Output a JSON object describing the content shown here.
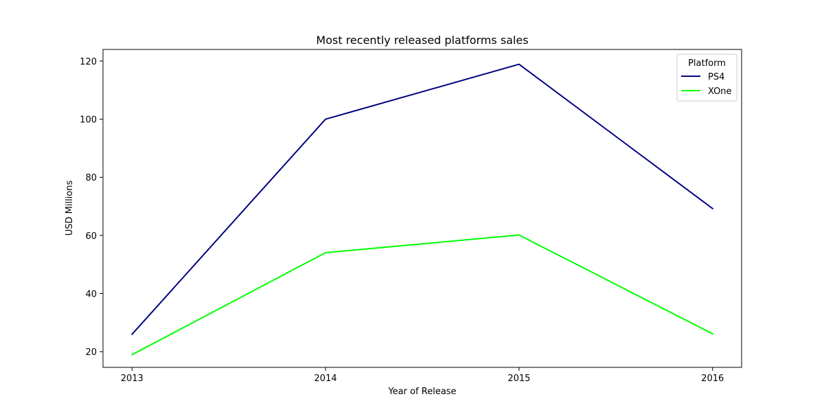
{
  "chart_data": {
    "type": "line",
    "title": "Most recently released platforms sales",
    "xlabel": "Year of Release",
    "ylabel": "USD Millions",
    "x": [
      2013,
      2014,
      2015,
      2016
    ],
    "x_tick_labels": [
      "2013",
      "2014",
      "2015",
      "2016"
    ],
    "xlim": [
      2012.85,
      2016.15
    ],
    "y_ticks": [
      20,
      40,
      60,
      80,
      100,
      120
    ],
    "y_tick_labels": [
      "20",
      "40",
      "60",
      "80",
      "100",
      "120"
    ],
    "ylim": [
      14.6,
      124.0
    ],
    "grid": false,
    "legend": {
      "title": "Platform",
      "placement": "top-right"
    },
    "series": [
      {
        "name": "PS4",
        "color": "#00007f",
        "values": [
          25.99,
          100.0,
          118.9,
          69.25
        ]
      },
      {
        "name": "XOne",
        "color": "#00ff00",
        "values": [
          18.96,
          54.07,
          60.14,
          26.15
        ]
      }
    ]
  }
}
